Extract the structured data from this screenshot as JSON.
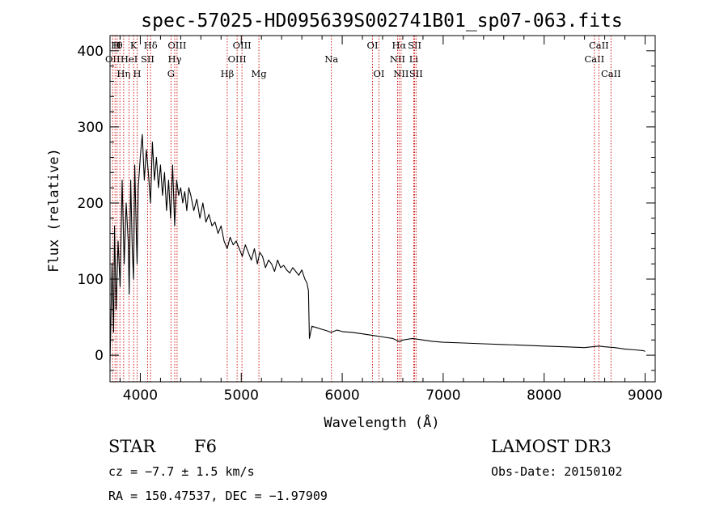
{
  "chart_data": {
    "type": "line",
    "title": "spec-57025-HD095639S002741B01_sp07-063.fits",
    "xlabel": "Wavelength (Å)",
    "ylabel": "Flux (relative)",
    "xlim": [
      3700,
      9100
    ],
    "ylim": [
      -35,
      420
    ],
    "xticks": [
      4000,
      5000,
      6000,
      7000,
      8000,
      9000
    ],
    "yticks": [
      0,
      100,
      200,
      300,
      400
    ],
    "series": [
      {
        "name": "spectrum",
        "x": [
          3700,
          3720,
          3735,
          3745,
          3760,
          3780,
          3800,
          3820,
          3840,
          3860,
          3880,
          3890,
          3905,
          3920,
          3933,
          3945,
          3960,
          3968,
          3980,
          4000,
          4020,
          4040,
          4060,
          4080,
          4101,
          4120,
          4140,
          4160,
          4180,
          4200,
          4220,
          4240,
          4260,
          4280,
          4300,
          4320,
          4340,
          4360,
          4380,
          4400,
          4420,
          4440,
          4460,
          4480,
          4500,
          4530,
          4560,
          4590,
          4620,
          4650,
          4680,
          4710,
          4740,
          4770,
          4800,
          4830,
          4861,
          4890,
          4920,
          4950,
          4980,
          5010,
          5040,
          5070,
          5100,
          5130,
          5160,
          5183,
          5210,
          5240,
          5270,
          5300,
          5330,
          5360,
          5390,
          5420,
          5450,
          5480,
          5510,
          5540,
          5570,
          5600,
          5630,
          5650,
          5665,
          5675,
          5700,
          5750,
          5800,
          5850,
          5890,
          5950,
          6000,
          6100,
          6200,
          6300,
          6400,
          6500,
          6563,
          6600,
          6700,
          6800,
          6900,
          7000,
          7200,
          7400,
          7600,
          7800,
          8000,
          8200,
          8400,
          8542,
          8600,
          8700,
          8800,
          8900,
          8980,
          9000
        ],
        "y": [
          -10,
          120,
          30,
          170,
          60,
          150,
          90,
          230,
          120,
          200,
          150,
          80,
          230,
          140,
          100,
          250,
          160,
          120,
          220,
          260,
          290,
          230,
          270,
          240,
          200,
          280,
          230,
          260,
          220,
          250,
          210,
          240,
          190,
          230,
          180,
          250,
          170,
          230,
          210,
          220,
          200,
          215,
          190,
          220,
          210,
          190,
          205,
          180,
          200,
          175,
          185,
          170,
          175,
          160,
          170,
          150,
          140,
          155,
          145,
          150,
          140,
          130,
          145,
          135,
          125,
          140,
          120,
          135,
          130,
          115,
          125,
          120,
          110,
          125,
          115,
          118,
          112,
          108,
          115,
          110,
          105,
          112,
          100,
          95,
          85,
          22,
          38,
          36,
          34,
          32,
          30,
          33,
          31,
          30,
          28,
          26,
          24,
          22,
          18,
          20,
          22,
          20,
          18,
          17,
          16,
          15,
          14,
          13,
          12,
          11,
          10,
          12,
          11,
          10,
          8,
          7,
          6,
          5
        ]
      }
    ],
    "spectral_lines": [
      {
        "wavelength": 3726,
        "label": "OII",
        "row": 2
      },
      {
        "wavelength": 3750,
        "label": "H",
        "row": 1
      },
      {
        "wavelength": 3770,
        "label": "H",
        "row": 1
      },
      {
        "wavelength": 3798,
        "label": "θ",
        "row": 1
      },
      {
        "wavelength": 3835,
        "label": "Hη",
        "row": 3
      },
      {
        "wavelength": 3889,
        "label": "HeI",
        "row": 2
      },
      {
        "wavelength": 3934,
        "label": "K",
        "row": 1
      },
      {
        "wavelength": 3969,
        "label": "H",
        "row": 3
      },
      {
        "wavelength": 4072,
        "label": "SII",
        "row": 2
      },
      {
        "wavelength": 4102,
        "label": "Hδ",
        "row": 1
      },
      {
        "wavelength": 4304,
        "label": "G",
        "row": 3
      },
      {
        "wavelength": 4341,
        "label": "Hγ",
        "row": 2
      },
      {
        "wavelength": 4364,
        "label": "OIII",
        "row": 1
      },
      {
        "wavelength": 4861,
        "label": "Hβ",
        "row": 3
      },
      {
        "wavelength": 4959,
        "label": "OIII",
        "row": 2
      },
      {
        "wavelength": 5007,
        "label": "OIII",
        "row": 1
      },
      {
        "wavelength": 5175,
        "label": "Mg",
        "row": 3
      },
      {
        "wavelength": 5893,
        "label": "Na",
        "row": 2
      },
      {
        "wavelength": 6300,
        "label": "OI",
        "row": 1
      },
      {
        "wavelength": 6364,
        "label": "OI",
        "row": 3
      },
      {
        "wavelength": 6548,
        "label": "NII",
        "row": 2
      },
      {
        "wavelength": 6563,
        "label": "Hα",
        "row": 1
      },
      {
        "wavelength": 6583,
        "label": "NII",
        "row": 3
      },
      {
        "wavelength": 6708,
        "label": "Li",
        "row": 2
      },
      {
        "wavelength": 6717,
        "label": "SII",
        "row": 1
      },
      {
        "wavelength": 6731,
        "label": "SII",
        "row": 3
      },
      {
        "wavelength": 8498,
        "label": "CaII",
        "row": 2
      },
      {
        "wavelength": 8542,
        "label": "CaII",
        "row": 1
      },
      {
        "wavelength": 8662,
        "label": "CaII",
        "row": 3
      }
    ],
    "line_color": "#cc0000",
    "data_color": "#000000"
  },
  "footer": {
    "object_type": "STAR",
    "subclass": "F6",
    "redshift": "cz = −7.7 ± 1.5 km/s",
    "coordinates": "RA = 150.47537, DEC =  −1.97909",
    "survey": "LAMOST DR3",
    "obs_date": "Obs-Date: 20150102"
  }
}
